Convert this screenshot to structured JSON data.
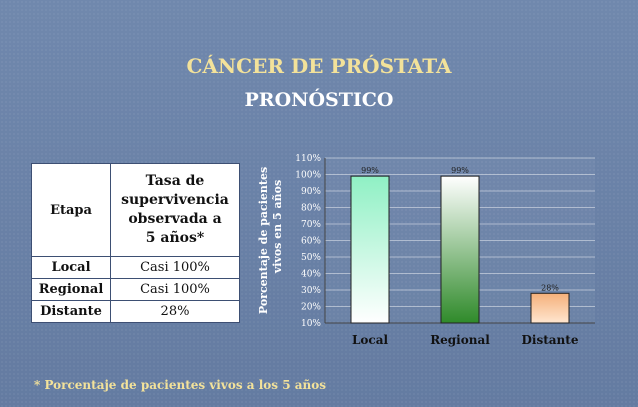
{
  "slide": {
    "title": "CÁNCER DE PRÓSTATA",
    "subtitle": "PRONÓSTICO",
    "footnote": "* Porcentaje de pacientes vivos a los 5 años"
  },
  "table": {
    "header_col1": "Etapa",
    "header_col2": [
      "Tasa de",
      "supervivencia",
      "observada a",
      "5 años*"
    ],
    "rows": [
      {
        "stage": "Local",
        "rate": "Casi 100%"
      },
      {
        "stage": "Regional",
        "rate": "Casi 100%"
      },
      {
        "stage": "Distante",
        "rate": "28%"
      }
    ]
  },
  "chart_data": {
    "type": "bar",
    "categories": [
      "Local",
      "Regional",
      "Distante"
    ],
    "values": [
      99,
      99,
      28
    ],
    "data_labels": [
      "99%",
      "99%",
      "28%"
    ],
    "ylabel_lines": [
      "Porcentaje de pacientes",
      "vivos en 5 años"
    ],
    "ylim": [
      10,
      110
    ],
    "yticks": [
      "10%",
      "20%",
      "30%",
      "40%",
      "50%",
      "60%",
      "70%",
      "80%",
      "90%",
      "100%",
      "110%"
    ],
    "grid": true,
    "colors": [
      "#8ff0c4",
      "#2f8a2a",
      "#f5b07a"
    ]
  }
}
